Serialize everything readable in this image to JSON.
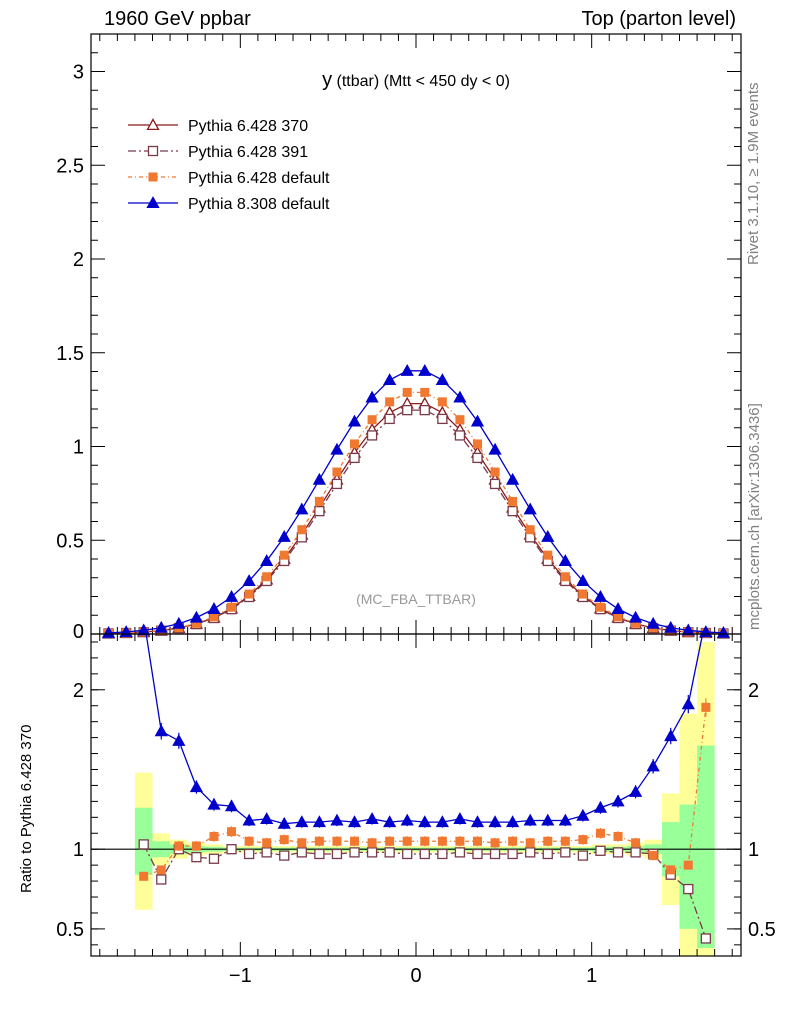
{
  "header": {
    "left": "1960 GeV ppbar",
    "right": "Top (parton level)"
  },
  "side_text": {
    "top": "Rivet 3.1.10, ≥ 1.9M events",
    "bottom": "mcplots.cern.ch [arXiv:1306.3436]"
  },
  "ratio_ylabel": "Ratio to Pythia 6.428 370",
  "chart_data": [
    {
      "type": "line",
      "title_main": "y",
      "title_rest": " (ttbar) (Mtt < 450 dy < 0)",
      "watermark": "(MC_FBA_TTBAR)",
      "xlabel": "",
      "ylabel": "",
      "xlim": [
        -1.85,
        1.85
      ],
      "ylim": [
        0,
        3.2
      ],
      "yticks": [
        {
          "v": 0.5,
          "label": "0.5"
        },
        {
          "v": 1,
          "label": "1"
        },
        {
          "v": 1.5,
          "label": "1.5"
        },
        {
          "v": 2,
          "label": "2"
        },
        {
          "v": 2.5,
          "label": "2.5"
        },
        {
          "v": 3,
          "label": "3"
        }
      ],
      "yzero_label": "0",
      "legend_position": "top-left",
      "series": [
        {
          "name": "Pythia 6.428 370",
          "color": "#8b1a1a",
          "marker": "triangle-open",
          "dash": "",
          "peak": 1.235,
          "sigma": 0.5
        },
        {
          "name": "Pythia 6.428 391",
          "color": "#7a3a4a",
          "marker": "square-open",
          "dash": "8 3 2 3",
          "peak": 1.2,
          "sigma": 0.5
        },
        {
          "name": "Pythia 6.428 default",
          "color": "#f07830",
          "marker": "square-filled",
          "dash": "4 3 1 3",
          "peak": 1.295,
          "sigma": 0.5
        },
        {
          "name": "Pythia 8.308 default",
          "color": "#0000cc",
          "marker": "triangle-filled",
          "dash": "",
          "peak": 1.41,
          "sigma": 0.53
        }
      ]
    },
    {
      "type": "line",
      "title": "",
      "xlim": [
        -1.85,
        1.85
      ],
      "ylim": [
        0.33,
        2.35
      ],
      "yticks": [
        {
          "v": 0.5,
          "label": "0.5"
        },
        {
          "v": 1,
          "label": "1"
        },
        {
          "v": 2,
          "label": "2"
        }
      ],
      "xticks": [
        {
          "v": -1,
          "label": "−1"
        },
        {
          "v": 0,
          "label": "0"
        },
        {
          "v": 1,
          "label": "1"
        }
      ],
      "reference_line": 1,
      "x": [
        -1.55,
        -1.45,
        -1.35,
        -1.25,
        -1.15,
        -1.05,
        -0.95,
        -0.85,
        -0.75,
        -0.65,
        -0.55,
        -0.45,
        -0.35,
        -0.25,
        -0.15,
        -0.05,
        0.05,
        0.15,
        0.25,
        0.35,
        0.45,
        0.55,
        0.65,
        0.75,
        0.85,
        0.95,
        1.05,
        1.15,
        1.25,
        1.35,
        1.45,
        1.55,
        1.65
      ],
      "bands": {
        "yellow": [
          [
            0.62,
            1.48
          ],
          [
            0.9,
            1.1
          ],
          [
            0.94,
            1.06
          ],
          [
            0.96,
            1.04
          ],
          [
            0.97,
            1.03
          ],
          [
            0.98,
            1.02
          ],
          [
            0.98,
            1.02
          ],
          [
            0.98,
            1.02
          ],
          [
            0.98,
            1.02
          ],
          [
            0.98,
            1.02
          ],
          [
            0.98,
            1.02
          ],
          [
            0.98,
            1.02
          ],
          [
            0.98,
            1.02
          ],
          [
            0.98,
            1.02
          ],
          [
            0.98,
            1.02
          ],
          [
            0.98,
            1.02
          ],
          [
            0.98,
            1.02
          ],
          [
            0.98,
            1.02
          ],
          [
            0.98,
            1.02
          ],
          [
            0.98,
            1.02
          ],
          [
            0.98,
            1.02
          ],
          [
            0.98,
            1.02
          ],
          [
            0.98,
            1.02
          ],
          [
            0.98,
            1.02
          ],
          [
            0.98,
            1.02
          ],
          [
            0.98,
            1.02
          ],
          [
            0.97,
            1.03
          ],
          [
            0.97,
            1.03
          ],
          [
            0.96,
            1.04
          ],
          [
            0.94,
            1.06
          ],
          [
            0.65,
            1.35
          ],
          [
            0.3,
            1.85
          ],
          [
            0.3,
            2.3
          ]
        ],
        "green": [
          [
            0.84,
            1.26
          ],
          [
            0.95,
            1.05
          ],
          [
            0.97,
            1.03
          ],
          [
            0.98,
            1.02
          ],
          [
            0.985,
            1.015
          ],
          [
            0.99,
            1.01
          ],
          [
            0.99,
            1.01
          ],
          [
            0.99,
            1.01
          ],
          [
            0.99,
            1.01
          ],
          [
            0.99,
            1.01
          ],
          [
            0.99,
            1.01
          ],
          [
            0.99,
            1.01
          ],
          [
            0.99,
            1.01
          ],
          [
            0.99,
            1.01
          ],
          [
            0.99,
            1.01
          ],
          [
            0.99,
            1.01
          ],
          [
            0.99,
            1.01
          ],
          [
            0.99,
            1.01
          ],
          [
            0.99,
            1.01
          ],
          [
            0.99,
            1.01
          ],
          [
            0.99,
            1.01
          ],
          [
            0.99,
            1.01
          ],
          [
            0.99,
            1.01
          ],
          [
            0.99,
            1.01
          ],
          [
            0.99,
            1.01
          ],
          [
            0.99,
            1.01
          ],
          [
            0.985,
            1.015
          ],
          [
            0.985,
            1.015
          ],
          [
            0.98,
            1.02
          ],
          [
            0.97,
            1.03
          ],
          [
            0.83,
            1.17
          ],
          [
            0.5,
            1.28
          ],
          [
            0.38,
            1.65
          ]
        ]
      },
      "series": [
        {
          "name": "Pythia 6.428 391",
          "values": [
            1.03,
            0.81,
            1.0,
            0.95,
            0.94,
            1.0,
            0.97,
            0.98,
            0.96,
            0.98,
            0.97,
            0.97,
            0.98,
            0.98,
            0.98,
            0.97,
            0.97,
            0.97,
            0.98,
            0.97,
            0.97,
            0.97,
            0.98,
            0.97,
            0.98,
            0.96,
            0.99,
            0.98,
            0.98,
            0.97,
            0.84,
            0.75,
            0.44
          ]
        },
        {
          "name": "Pythia 6.428 default",
          "values": [
            0.83,
            0.87,
            1.02,
            1.02,
            1.08,
            1.11,
            1.05,
            1.04,
            1.06,
            1.04,
            1.05,
            1.05,
            1.05,
            1.04,
            1.05,
            1.05,
            1.05,
            1.05,
            1.05,
            1.05,
            1.04,
            1.05,
            1.04,
            1.05,
            1.05,
            1.06,
            1.1,
            1.08,
            1.04,
            0.96,
            0.87,
            0.9,
            1.89
          ]
        },
        {
          "name": "Pythia 8.308 default",
          "values": [
            2.45,
            1.74,
            1.68,
            1.39,
            1.28,
            1.27,
            1.18,
            1.19,
            1.16,
            1.17,
            1.17,
            1.18,
            1.17,
            1.19,
            1.17,
            1.18,
            1.17,
            1.17,
            1.19,
            1.17,
            1.17,
            1.17,
            1.18,
            1.18,
            1.18,
            1.21,
            1.26,
            1.3,
            1.36,
            1.52,
            1.71,
            1.91,
            2.45
          ]
        }
      ]
    }
  ]
}
